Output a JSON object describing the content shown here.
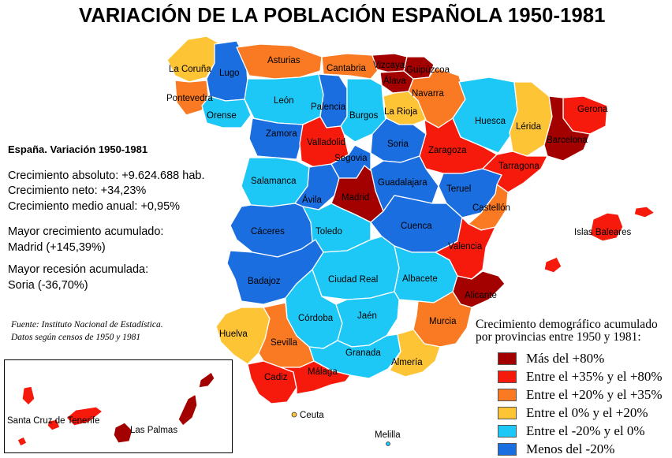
{
  "title": "VARIACIÓN DE LA POBLACIÓN ESPAÑOLA 1950-1981",
  "stats": {
    "heading": "España. Variación 1950-1981",
    "absolute": "Crecimiento absoluto: +9.624.688 hab.",
    "net": "Crecimiento neto: +34,23%",
    "annual": "Crecimiento medio anual: +0,95%",
    "max_label": "Mayor crecimiento acumulado:",
    "max_value": "Madrid (+145,39%)",
    "min_label": "Mayor recesión acumulada:",
    "min_value": "Soria (-36,70%)"
  },
  "source": {
    "line1": "Fuente: Instituto Nacional de Estadística.",
    "line2": "Datos según censos de 1950 y 1981"
  },
  "legend": {
    "title_line1": "Crecimiento demográfico acumulado",
    "title_line2": "por provincias entre 1950 y 1981:",
    "items": [
      {
        "label": "Más del +80%",
        "color": "#a30000"
      },
      {
        "label": "Entre el +35% y el +80%",
        "color": "#f51a0c"
      },
      {
        "label": "Entre el +20% y el +35%",
        "color": "#f97a22"
      },
      {
        "label": "Entre el 0% y el +20%",
        "color": "#fdc436"
      },
      {
        "label": "Entre el -20% y el 0%",
        "color": "#1ec8f6"
      },
      {
        "label": "Menos del -20%",
        "color": "#1a6ee0"
      }
    ]
  },
  "provinces": {
    "la_coruna": "La Coruña",
    "lugo": "Lugo",
    "asturias": "Asturias",
    "cantabria": "Cantabria",
    "vizcaya": "Vizcaya",
    "guipuzcoa": "Guipúzcoa",
    "alava": "Álava",
    "navarra": "Navarra",
    "pontevedra": "Pontevedra",
    "orense": "Orense",
    "leon": "León",
    "palencia": "Palencia",
    "burgos": "Burgos",
    "la_rioja": "La Rioja",
    "huesca": "Huesca",
    "lerida": "Lérida",
    "gerona": "Gerona",
    "barcelona": "Barcelona",
    "tarragona": "Tarragona",
    "zamora": "Zamora",
    "valladolid": "Valladolid",
    "soria": "Soria",
    "zaragoza": "Zaragoza",
    "segovia": "Segovia",
    "salamanca": "Salamanca",
    "avila": "Ávila",
    "madrid": "Madrid",
    "guadalajara": "Guadalajara",
    "teruel": "Teruel",
    "castellon": "Castellón",
    "islas_baleares": "Islas Baleares",
    "caceres": "Cáceres",
    "toledo": "Toledo",
    "cuenca": "Cuenca",
    "valencia": "Valencia",
    "badajoz": "Badajoz",
    "ciudad_real": "Ciudad Real",
    "albacete": "Albacete",
    "alicante": "Alicante",
    "cordoba": "Córdoba",
    "jaen": "Jaén",
    "murcia": "Murcia",
    "huelva": "Huelva",
    "sevilla": "Sevilla",
    "granada": "Granada",
    "almeria": "Almería",
    "cadiz": "Cadiz",
    "malaga": "Málaga",
    "ceuta": "Ceuta",
    "melilla": "Melilla",
    "santa_cruz": "Santa Cruz de Tenerife",
    "las_palmas": "Las Palmas"
  }
}
